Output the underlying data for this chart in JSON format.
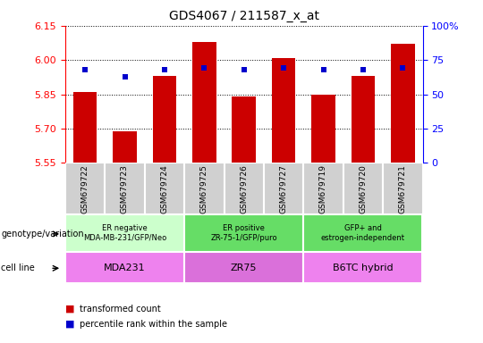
{
  "title": "GDS4067 / 211587_x_at",
  "samples": [
    "GSM679722",
    "GSM679723",
    "GSM679724",
    "GSM679725",
    "GSM679726",
    "GSM679727",
    "GSM679719",
    "GSM679720",
    "GSM679721"
  ],
  "bar_values": [
    5.86,
    5.69,
    5.93,
    6.08,
    5.84,
    6.01,
    5.85,
    5.93,
    6.07
  ],
  "percentile_values": [
    68,
    63,
    68,
    69,
    68,
    69,
    68,
    68,
    69
  ],
  "ylim": [
    5.55,
    6.15
  ],
  "yticks": [
    5.55,
    5.7,
    5.85,
    6.0,
    6.15
  ],
  "right_yticks": [
    0,
    25,
    50,
    75,
    100
  ],
  "bar_color": "#CC0000",
  "percentile_color": "#0000CC",
  "groups": [
    {
      "label": "ER negative\nMDA-MB-231/GFP/Neo",
      "cell_line": "MDA231",
      "start": 0,
      "end": 3,
      "geno_color": "#ccffcc",
      "cell_color": "#ee82ee"
    },
    {
      "label": "ER positive\nZR-75-1/GFP/puro",
      "cell_line": "ZR75",
      "start": 3,
      "end": 6,
      "geno_color": "#66dd66",
      "cell_color": "#da70da"
    },
    {
      "label": "GFP+ and\nestrogen-independent",
      "cell_line": "B6TC hybrid",
      "start": 6,
      "end": 9,
      "geno_color": "#66dd66",
      "cell_color": "#ee82ee"
    }
  ],
  "legend_items": [
    {
      "color": "#CC0000",
      "label": "transformed count"
    },
    {
      "color": "#0000CC",
      "label": "percentile rank within the sample"
    }
  ],
  "left_label": "genotype/variation",
  "cell_label": "cell line",
  "sample_box_color": "#d0d0d0",
  "sample_box_edge": "#ffffff"
}
